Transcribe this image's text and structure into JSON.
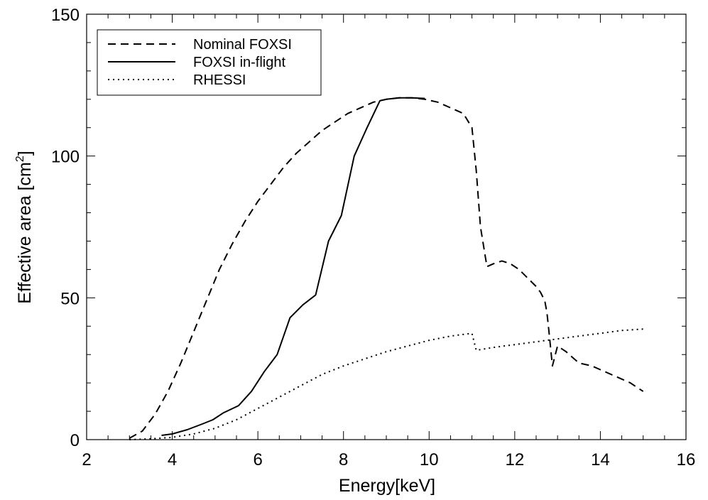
{
  "chart_data": {
    "type": "line",
    "xlabel": "Energy[keV]",
    "ylabel": "Effective area [cm",
    "ylabel_sup": "2",
    "ylabel_close": "]",
    "xlim": [
      2,
      16
    ],
    "ylim": [
      0,
      150
    ],
    "x_ticks": [
      2,
      4,
      6,
      8,
      10,
      12,
      14,
      16
    ],
    "y_ticks": [
      0,
      50,
      100,
      150
    ],
    "x_minor_step": 0.5,
    "y_minor_step": 10,
    "grid": false,
    "legend_position": "top-left",
    "series": [
      {
        "name": "Nominal FOXSI",
        "style": "dashed",
        "color": "#000000",
        "x": [
          3.0,
          3.3,
          3.6,
          3.9,
          4.2,
          4.5,
          4.8,
          5.1,
          5.4,
          5.7,
          6.0,
          6.3,
          6.6,
          6.9,
          7.2,
          7.5,
          7.8,
          8.1,
          8.4,
          8.7,
          9.0,
          9.3,
          9.6,
          9.9,
          10.2,
          10.5,
          10.8,
          11.0,
          11.1,
          11.2,
          11.35,
          11.5,
          11.7,
          11.9,
          12.1,
          12.3,
          12.5,
          12.6,
          12.7,
          12.75,
          12.8,
          12.88,
          13.0,
          13.2,
          13.5,
          13.8,
          14.1,
          14.4,
          14.7,
          15.0
        ],
        "y": [
          0.5,
          3,
          9,
          17,
          27,
          38,
          49,
          60,
          69,
          77,
          84,
          90,
          96,
          101,
          105,
          109,
          112,
          115,
          117,
          119,
          120,
          120.5,
          120.5,
          120,
          119,
          117,
          115,
          110,
          95,
          75,
          61,
          62,
          63,
          62,
          60,
          57,
          54,
          52,
          49,
          45,
          38,
          26,
          33,
          31,
          27,
          26,
          24,
          22,
          20,
          17
        ]
      },
      {
        "name": "FOXSI in-flight",
        "style": "solid",
        "color": "#000000",
        "x": [
          3.75,
          4.0,
          4.35,
          4.7,
          4.95,
          5.2,
          5.55,
          5.85,
          6.15,
          6.45,
          6.75,
          7.05,
          7.35,
          7.65,
          7.95,
          8.25,
          8.55,
          8.85,
          9.0,
          9.3,
          9.6,
          9.9
        ],
        "y": [
          1.5,
          2,
          3.5,
          5.5,
          7,
          9.5,
          12,
          17,
          24,
          30,
          43,
          47.5,
          51,
          70,
          79,
          100,
          110,
          119.5,
          120,
          120.5,
          120.5,
          120.3
        ]
      },
      {
        "name": "RHESSI",
        "style": "dotted",
        "color": "#000000",
        "x": [
          3.0,
          3.5,
          4.0,
          4.5,
          5.0,
          5.5,
          6.0,
          6.5,
          7.0,
          7.5,
          8.0,
          8.5,
          9.0,
          9.5,
          10.0,
          10.5,
          11.0,
          11.1,
          11.5,
          12.0,
          12.5,
          13.0,
          13.5,
          14.0,
          14.5,
          15.0
        ],
        "y": [
          0,
          0.3,
          0.8,
          2,
          4,
          7,
          11,
          15,
          19,
          23,
          26,
          28.5,
          31,
          33,
          35,
          36.5,
          37.5,
          31.5,
          32.5,
          33.5,
          34.5,
          35.5,
          36.5,
          37.5,
          38.5,
          39
        ]
      }
    ]
  }
}
